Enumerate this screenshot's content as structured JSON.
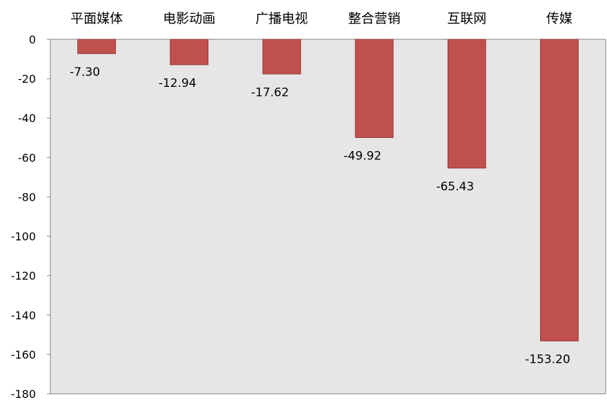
{
  "chart_data": {
    "type": "bar",
    "categories": [
      "平面媒体",
      "电影动画",
      "广播电视",
      "整合营销",
      "互联网",
      "传媒"
    ],
    "values": [
      -7.3,
      -12.94,
      -17.62,
      -49.92,
      -65.43,
      -153.2
    ],
    "data_labels": [
      "-7.30",
      "-12.94",
      "-17.62",
      "-49.92",
      "-65.43",
      "-153.20"
    ],
    "ylim": [
      -180,
      0
    ],
    "yticks": [
      0,
      -20,
      -40,
      -60,
      -80,
      -100,
      -120,
      -140,
      -160,
      -180
    ],
    "title": "",
    "xlabel": "",
    "ylabel": "",
    "category_axis_position": "top",
    "grid": false,
    "legend": "none",
    "colors": {
      "bar_fill": "#C0504D",
      "bar_stroke": "#8B2F2D",
      "plot_background": "#E6E6E6",
      "plot_border": "#808080",
      "axis_line": "#808080"
    }
  }
}
